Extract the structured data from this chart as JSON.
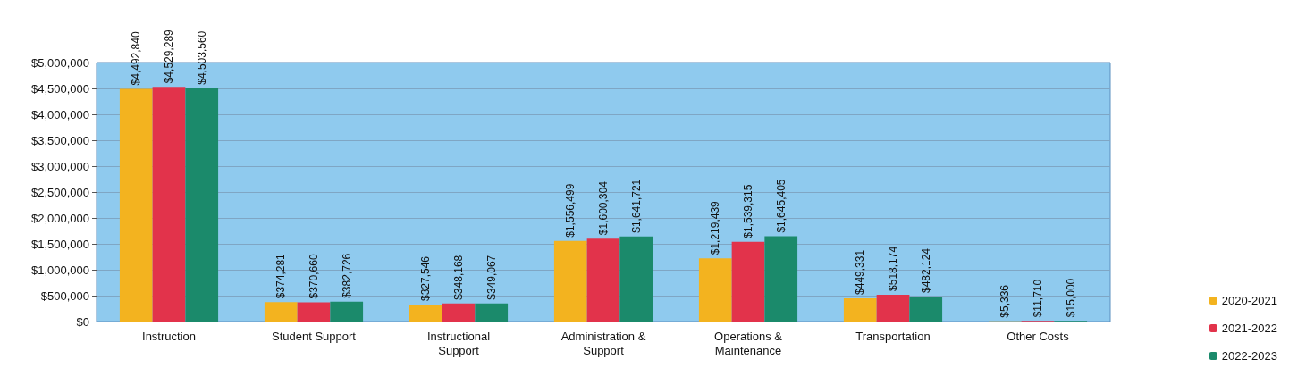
{
  "chart_data": {
    "type": "bar",
    "categories": [
      "Instruction",
      "Student Support",
      "Instructional\nSupport",
      "Administration &\nSupport",
      "Operations &\nMaintenance",
      "Transportation",
      "Other Costs"
    ],
    "series": [
      {
        "name": "2020-2021",
        "color": "#f3b31f",
        "values": [
          4492840,
          374281,
          327546,
          1556499,
          1219439,
          449331,
          5336
        ],
        "value_labels": [
          "$4,492,840",
          "$374,281",
          "$327,546",
          "$1,556,499",
          "$1,219,439",
          "$449,331",
          "$5,336"
        ]
      },
      {
        "name": "2021-2022",
        "color": "#e2334b",
        "values": [
          4529289,
          370660,
          348168,
          1600304,
          1539315,
          518174,
          11710
        ],
        "value_labels": [
          "$4,529,289",
          "$370,660",
          "$348,168",
          "$1,600,304",
          "$1,539,315",
          "$518,174",
          "$11,710"
        ]
      },
      {
        "name": "2022-2023",
        "color": "#1b8a6b",
        "values": [
          4503560,
          382726,
          349067,
          1641721,
          1645405,
          482124,
          15000
        ],
        "value_labels": [
          "$4,503,560",
          "$382,726",
          "$349,067",
          "$1,641,721",
          "$1,645,405",
          "$482,124",
          "$15,000"
        ]
      }
    ],
    "ylim": [
      0,
      5000000
    ],
    "yticks": [
      {
        "value": 0,
        "label": "$0"
      },
      {
        "value": 500000,
        "label": "$500,000"
      },
      {
        "value": 1000000,
        "label": "$1,000,000"
      },
      {
        "value": 1500000,
        "label": "$1,500,000"
      },
      {
        "value": 2000000,
        "label": "$2,000,000"
      },
      {
        "value": 2500000,
        "label": "$2,500,000"
      },
      {
        "value": 3000000,
        "label": "$3,000,000"
      },
      {
        "value": 3500000,
        "label": "$3,500,000"
      },
      {
        "value": 4000000,
        "label": "$4,000,000"
      },
      {
        "value": 4500000,
        "label": "$4,500,000"
      },
      {
        "value": 5000000,
        "label": "$5,000,000"
      }
    ],
    "grid": "y",
    "legend": "bottom right"
  }
}
